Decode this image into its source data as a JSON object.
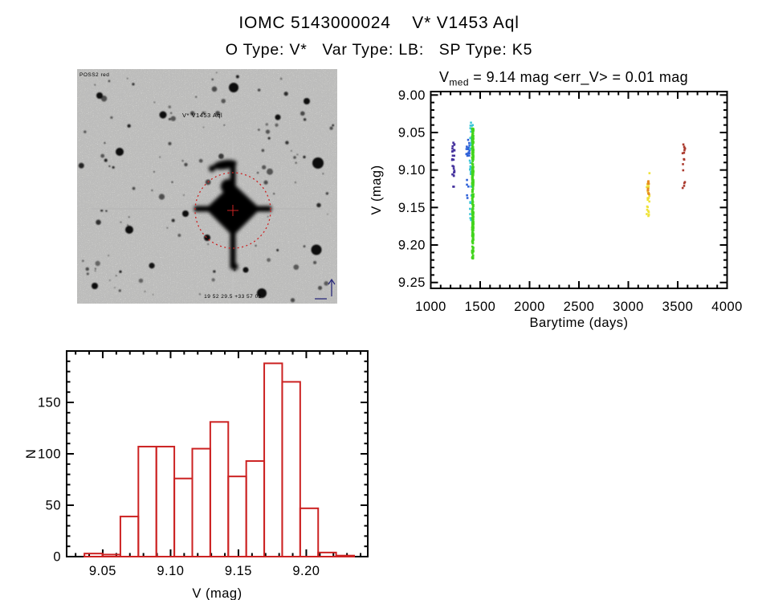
{
  "window": {
    "background": "#ffffff"
  },
  "header": {
    "title": "IOMC 5143000024    V* V1453 Aql",
    "subtitle": "O Type: V*   Var Type: LB:   SP Type: K5"
  },
  "finder_chart": {
    "source_label": "POSS2 red",
    "target_label": "V* V1453 Aql",
    "coords_label": "19 52 29.5  +33 57 02",
    "annotation_color": "#cc2222",
    "text_color": "#2a2a7a"
  },
  "chart_data": [
    {
      "id": "lightcurve",
      "type": "scatter",
      "title_prefix": "V",
      "title_sub": "med",
      "title_rest": " = 9.14 mag <err_V> = 0.01 mag",
      "xlabel": "Barytime (days)",
      "ylabel": "V (mag)",
      "xlim": [
        1000,
        4000
      ],
      "ylim": [
        9.0,
        9.25
      ],
      "y_inverted_magnitude_axis": true,
      "xticks": [
        1000,
        1500,
        2000,
        2500,
        3000,
        3500,
        4000
      ],
      "yticks": [
        9.0,
        9.05,
        9.1,
        9.15,
        9.2,
        9.25
      ],
      "x_minor_step": 100,
      "y_minor_step": 0.01,
      "x_decimals": 0,
      "y_decimals": 2,
      "legend": "none",
      "grid": false,
      "clusters": [
        {
          "name": "epoch1-purple",
          "color": "#46339e",
          "x": [
            1215,
            1240
          ],
          "y": [
            9.063,
            9.132
          ],
          "n": 26
        },
        {
          "name": "epoch2-blue",
          "color": "#2f62d8",
          "x": [
            1360,
            1392
          ],
          "y": [
            9.057,
            9.082
          ],
          "n": 16
        },
        {
          "name": "epoch2b-blue",
          "color": "#2f62d8",
          "x": [
            1365,
            1385
          ],
          "y": [
            9.108,
            9.138
          ],
          "n": 5
        },
        {
          "name": "epoch3-cyan",
          "color": "#3cc6d8",
          "x": [
            1395,
            1425
          ],
          "y": [
            9.036,
            9.172
          ],
          "n": 48
        },
        {
          "name": "epoch4-green",
          "color": "#43d41e",
          "x": [
            1418,
            1432
          ],
          "y": [
            9.044,
            9.218
          ],
          "n": 270
        },
        {
          "name": "epoch5-yellow",
          "color": "#efe33a",
          "x": [
            3185,
            3215
          ],
          "y": [
            9.104,
            9.162
          ],
          "n": 26
        },
        {
          "name": "epoch6-orange",
          "color": "#e78c22",
          "x": [
            3196,
            3210
          ],
          "y": [
            9.114,
            9.134
          ],
          "n": 12
        },
        {
          "name": "epoch7-darkred",
          "color": "#ab3a2e",
          "x": [
            3548,
            3575
          ],
          "y": [
            9.063,
            9.131
          ],
          "n": 15
        }
      ]
    },
    {
      "id": "histogram",
      "type": "histogram",
      "xlabel": "V (mag)",
      "ylabel": "N",
      "xlim": [
        9.0234,
        9.2453
      ],
      "ylim": [
        0,
        200
      ],
      "xticks": [
        9.05,
        9.1,
        9.15,
        9.2
      ],
      "yticks": [
        0,
        50,
        100,
        150
      ],
      "x_minor_step": 0.01,
      "y_minor_step": 10,
      "x_decimals": 2,
      "y_decimals": 0,
      "grid": false,
      "bar_color": "#cc2222",
      "bin_start": 9.0365,
      "bin_width": 0.01325,
      "counts": [
        3,
        2,
        39,
        107,
        107,
        76,
        105,
        131,
        78,
        93,
        188,
        170,
        47,
        4,
        1
      ]
    }
  ]
}
